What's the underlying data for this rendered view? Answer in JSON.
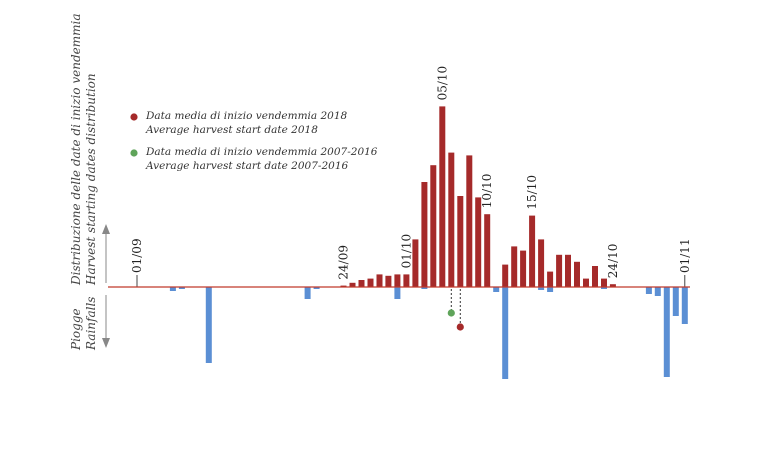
{
  "chart_data": {
    "type": "bar",
    "title": "",
    "xlabel": "",
    "ylabel_top": "Distribuzione delle date di inizio vendemmia",
    "ylabel_top_en": "Harvest starting dates distribution",
    "ylabel_bottom": "Piogge",
    "ylabel_bottom_en": "Rainfalls",
    "x_range": [
      "2018-09-01",
      "2018-11-01"
    ],
    "date_labels": [
      {
        "date": "2018-09-01",
        "label": "01/09"
      },
      {
        "date": "2018-09-24",
        "label": "24/09"
      },
      {
        "date": "2018-10-01",
        "label": "01/10"
      },
      {
        "date": "2018-10-05",
        "label": "05/10"
      },
      {
        "date": "2018-10-10",
        "label": "10/10"
      },
      {
        "date": "2018-10-15",
        "label": "15/10"
      },
      {
        "date": "2018-10-24",
        "label": "24/10"
      },
      {
        "date": "2018-11-01",
        "label": "01/11"
      }
    ],
    "series": [
      {
        "legend_ref": "harvest",
        "color": "#a52a2a",
        "points": [
          [
            "2018-09-24",
            1
          ],
          [
            "2018-09-25",
            3
          ],
          [
            "2018-09-26",
            5
          ],
          [
            "2018-09-27",
            6
          ],
          [
            "2018-09-28",
            9
          ],
          [
            "2018-09-29",
            8
          ],
          [
            "2018-09-30",
            9
          ],
          [
            "2018-10-01",
            9
          ],
          [
            "2018-10-02",
            34
          ],
          [
            "2018-10-03",
            75
          ],
          [
            "2018-10-04",
            87
          ],
          [
            "2018-10-05",
            129
          ],
          [
            "2018-10-06",
            96
          ],
          [
            "2018-10-07",
            65
          ],
          [
            "2018-10-08",
            94
          ],
          [
            "2018-10-09",
            64
          ],
          [
            "2018-10-10",
            52
          ],
          [
            "2018-10-12",
            16
          ],
          [
            "2018-10-13",
            29
          ],
          [
            "2018-10-14",
            26
          ],
          [
            "2018-10-15",
            51
          ],
          [
            "2018-10-16",
            34
          ],
          [
            "2018-10-17",
            11
          ],
          [
            "2018-10-18",
            23
          ],
          [
            "2018-10-19",
            23
          ],
          [
            "2018-10-20",
            18
          ],
          [
            "2018-10-21",
            6
          ],
          [
            "2018-10-22",
            15
          ],
          [
            "2018-10-23",
            6
          ],
          [
            "2018-10-24",
            2
          ]
        ]
      },
      {
        "legend_ref": "rainfall",
        "color": "#5b8fd4",
        "points": [
          [
            "2018-09-05",
            4
          ],
          [
            "2018-09-06",
            2
          ],
          [
            "2018-09-09",
            76
          ],
          [
            "2018-09-20",
            12
          ],
          [
            "2018-09-21",
            2
          ],
          [
            "2018-09-30",
            12
          ],
          [
            "2018-10-03",
            2
          ],
          [
            "2018-10-11",
            5
          ],
          [
            "2018-10-12",
            92
          ],
          [
            "2018-10-16",
            3
          ],
          [
            "2018-10-17",
            5
          ],
          [
            "2018-10-23",
            2
          ],
          [
            "2018-10-28",
            7
          ],
          [
            "2018-10-29",
            9
          ],
          [
            "2018-10-30",
            90
          ],
          [
            "2018-10-31",
            29
          ],
          [
            "2018-11-01",
            37
          ]
        ]
      }
    ],
    "markers": [
      {
        "legend_ref": "avg_2007_2016",
        "date": "2018-10-06",
        "color": "#5fa45a"
      },
      {
        "legend_ref": "avg_2018",
        "date": "2018-10-07",
        "color": "#a52a2a"
      }
    ],
    "legend": [
      {
        "key": "avg_2018",
        "color": "#a52a2a",
        "label": "Data media di inizio vendemmia 2018",
        "label_en": "Average harvest start date 2018"
      },
      {
        "key": "avg_2007_2016",
        "color": "#5fa45a",
        "label": "Data media di inizio vendemmia 2007-2016",
        "label_en": "Average harvest start date 2007-2016"
      }
    ],
    "grid": false,
    "legend_position": "top-left"
  }
}
